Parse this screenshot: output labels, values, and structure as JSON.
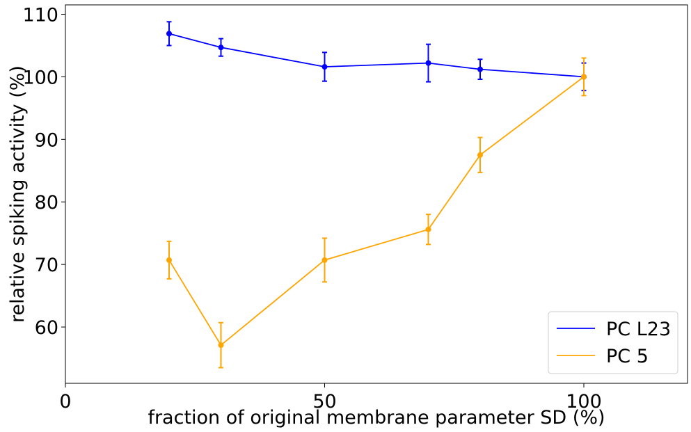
{
  "chart_data": {
    "type": "line",
    "title": "",
    "xlabel": "fraction of original membrane parameter SD (%)",
    "ylabel": "relative spiking activity (%)",
    "xlim": [
      0,
      120
    ],
    "ylim": [
      51,
      111.5
    ],
    "xticks": [
      0,
      50,
      100
    ],
    "yticks": [
      60,
      70,
      80,
      90,
      100,
      110
    ],
    "grid": false,
    "legend_position": "bottom-right",
    "series": [
      {
        "name": "PC L23",
        "color": "#0000ff",
        "x": [
          20,
          30,
          50,
          70,
          80,
          100
        ],
        "y": [
          106.9,
          104.7,
          101.6,
          102.2,
          101.2,
          100.0
        ],
        "err": [
          1.9,
          1.4,
          2.3,
          3.0,
          1.6,
          2.2
        ]
      },
      {
        "name": "PC 5",
        "color": "#ffa500",
        "x": [
          20,
          30,
          50,
          70,
          80,
          100
        ],
        "y": [
          70.7,
          57.1,
          70.7,
          75.6,
          87.5,
          100.0
        ],
        "err": [
          3.0,
          3.6,
          3.5,
          2.4,
          2.8,
          3.0
        ]
      }
    ]
  }
}
